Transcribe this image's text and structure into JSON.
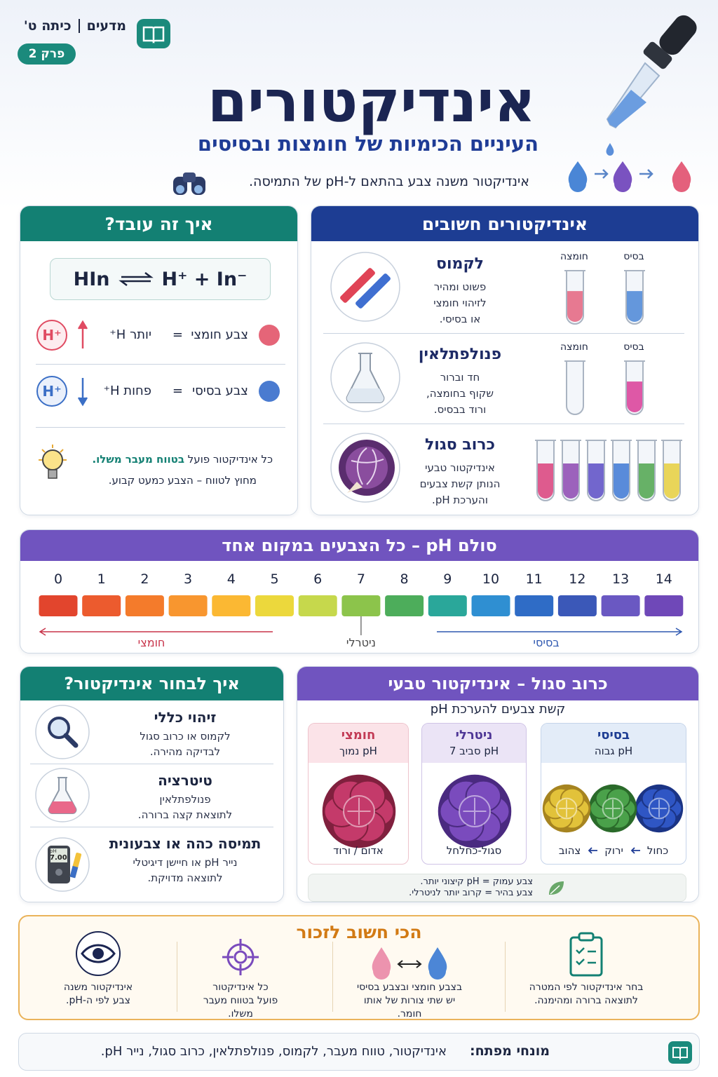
{
  "header": {
    "subject": "מדעים",
    "grade": "כיתה ט'",
    "chapter": "פרק 2",
    "title": "אינדיקטורים",
    "subtitle": "העיניים הכימיות של חומצות ובסיסים",
    "intro": "אינדיקטור משנה צבע בהתאם ל-pH של התמיסה."
  },
  "how_it_works": {
    "title": "איך זה עובד?",
    "equation": {
      "reactant": "HIn",
      "products": "H⁺ + In⁻"
    },
    "rows": [
      {
        "badge": "H⁺",
        "amount": "יותר H⁺",
        "equals": "=",
        "result": "צבע חומצי"
      },
      {
        "badge": "H⁺",
        "amount": "פחות H⁺",
        "equals": "=",
        "result": "צבע בסיסי"
      }
    ],
    "note": {
      "text": "כל אינדיקטור פועל",
      "highlight": "בטווח מעבר משלו.",
      "line2": "מחוץ לטווח – הצבע כמעט קבוע."
    }
  },
  "important_indicators": {
    "title": "אינדיקטורים חשובים",
    "items": [
      {
        "name": "לקמוס",
        "description": [
          "פשוט ומהיר",
          "לזיהוי חומצי",
          "או בסיסי."
        ],
        "tube_labels": [
          "בסיס",
          "חומצה"
        ]
      },
      {
        "name": "פנולפתלאין",
        "description": [
          "חד וברור",
          "שקוף בחומצה,",
          "ורוד בבסיס."
        ],
        "tube_labels": [
          "בסיס",
          "חומצה"
        ]
      },
      {
        "name": "כרוב סגול",
        "description": [
          "אינדיקטור טבעי",
          "הנותן קשת צבעים",
          "והערכת pH."
        ]
      }
    ]
  },
  "ph_scale": {
    "title": "סולם pH – כל הצבעים במקום אחד",
    "values": [
      0,
      1,
      2,
      3,
      4,
      5,
      6,
      7,
      8,
      9,
      10,
      11,
      12,
      13,
      14
    ],
    "colors": [
      "#e2452d",
      "#ec5b2e",
      "#f47b2b",
      "#f8962f",
      "#fbb833",
      "#ecd83c",
      "#c6d84c",
      "#8cc44b",
      "#4dad5b",
      "#2aa79a",
      "#2f8fd2",
      "#2f6cc6",
      "#3b58b8",
      "#6a58c2",
      "#6f48b8"
    ],
    "acidic": "חומצי",
    "neutral": "ניטרלי",
    "basic": "בסיסי"
  },
  "choose": {
    "title": "איך לבחור אינדיקטור?",
    "items": [
      {
        "title": "זיהוי כללי",
        "lines": [
          "לקמוס או כרוב סגול",
          "לבדיקה מהירה."
        ]
      },
      {
        "title": "טיטרציה",
        "lines": [
          "פנולפתלאין",
          "לתוצאת קצה ברורה."
        ]
      },
      {
        "title": "תמיסה כהה או צבעונית",
        "lines": [
          "נייר pH או חיישן דיגיטלי",
          "לתוצאה מדויקת."
        ],
        "meter_unit": "pH",
        "meter_value": "7.00"
      }
    ]
  },
  "cabbage": {
    "title": "כרוב סגול – אינדיקטור טבעי",
    "subtitle": "קשת צבעים להערכת pH",
    "columns": [
      {
        "name": "בסיסי",
        "range": "pH גבוה",
        "colors": [
          "כחול",
          "ירוק",
          "צהוב"
        ]
      },
      {
        "name": "ניטרלי",
        "range": "pH סביב 7",
        "colors": [
          "סגול-כחלחל"
        ]
      },
      {
        "name": "חומצי",
        "range": "pH נמוך",
        "colors": [
          "אדום / ורוד"
        ]
      }
    ],
    "note": [
      "צבע עמוק = pH קיצוני יותר.",
      "צבע בהיר = קרוב יותר לניטרלי."
    ]
  },
  "remember": {
    "title": "הכי חשוב לזכור",
    "items": [
      [
        "בחר אינדיקטור לפי המטרה",
        "לתוצאה ברורה ומהימנה."
      ],
      [
        "בצבע חומצי ובצבע בסיסי",
        "יש שתי צורות של אותו",
        "חומר."
      ],
      [
        "כל אינדיקטור",
        "פועל בטווח מעבר",
        "משלו."
      ],
      [
        "אינדיקטור משנה",
        "צבע לפי ה-pH."
      ]
    ]
  },
  "footer": {
    "label": "מונחי מפתח:",
    "terms": "אינדיקטור, טווח מעבר, לקמוס, פנולפתלאין, כרוב סגול, נייר pH."
  }
}
